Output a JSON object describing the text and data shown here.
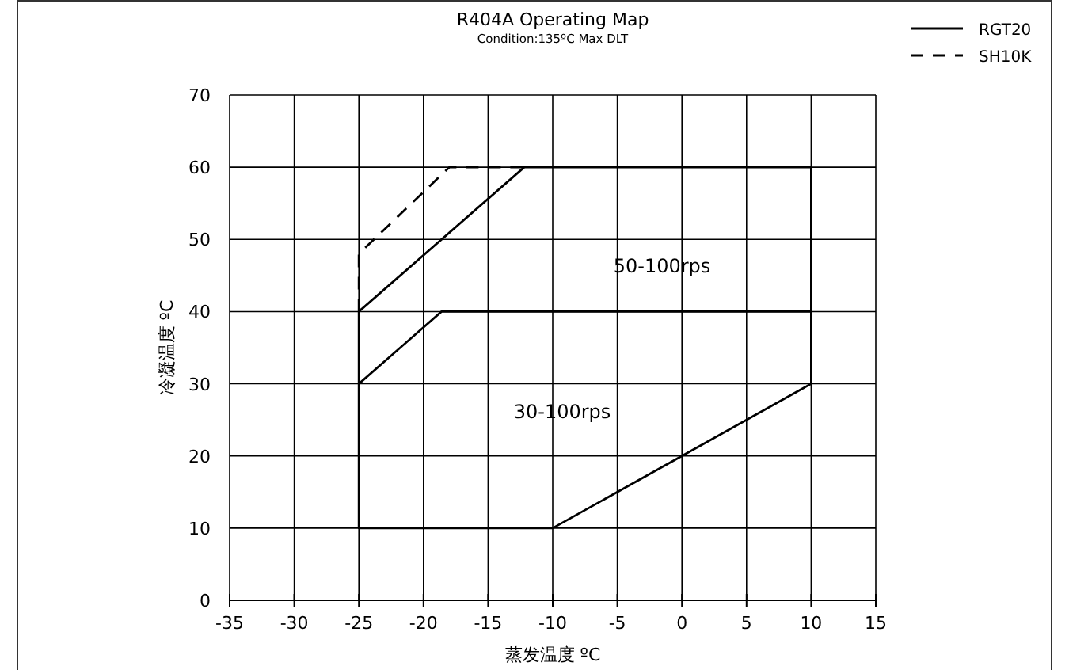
{
  "chart_data": {
    "type": "line",
    "title": "R404A Operating Map",
    "subtitle": "Condition:135ºC  Max DLT",
    "xlabel": "蒸发温度 ºC",
    "ylabel": "冷凝温度 ºC",
    "xlim": [
      -35,
      15
    ],
    "ylim": [
      0,
      70
    ],
    "xticks": [
      -35,
      -30,
      -25,
      -20,
      -15,
      -10,
      -5,
      0,
      5,
      10,
      15
    ],
    "yticks": [
      0,
      10,
      20,
      30,
      40,
      50,
      60,
      70
    ],
    "grid": true,
    "legend": "top right",
    "marker": "none",
    "series": [
      {
        "name": "RGT20",
        "color": "#000000",
        "line_style": "solid",
        "x": [
          -25,
          -12.2,
          10,
          10,
          -10,
          -25,
          -25,
          -18.6,
          10
        ],
        "values": [
          40,
          60,
          60,
          30,
          10,
          10,
          30,
          40,
          40
        ]
      },
      {
        "color": "#000000",
        "line_style": "solid",
        "x": [
          -25,
          -25
        ],
        "values": [
          30,
          40
        ]
      },
      {
        "name": "SH10K",
        "color": "#000000",
        "line_style": "dashed",
        "x": [
          -25,
          -25,
          -18,
          -12.2
        ],
        "values": [
          40,
          48,
          60,
          60
        ]
      }
    ],
    "annotations": [
      "50-100rps",
      "30-100rps"
    ]
  }
}
